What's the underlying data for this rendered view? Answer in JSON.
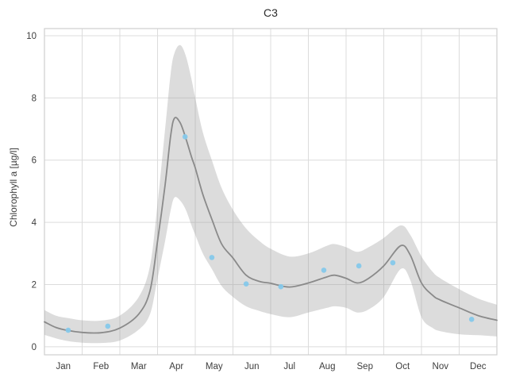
{
  "figure": {
    "background": "#ffffff"
  },
  "colors": {
    "trend_line": "#8a8a8a",
    "confidence_band": "#9b9b9b",
    "confidence_band_alpha": 0.35,
    "scatter_point": "#85c8ea",
    "grid": "#dcdcdc",
    "spine": "#cfcfcf",
    "text": "#3d3d3d",
    "title_text": "#2b2b2b"
  },
  "chart_data": {
    "type": "line",
    "title": "C3",
    "xlabel": "",
    "ylabel": "Chlorophyll a [µg/l]",
    "grid": true,
    "legend": "none",
    "x_axis": {
      "unit": "months (0 = Jan 1, 12 = Dec 31)",
      "range": [
        0,
        12
      ],
      "gridline_positions": [
        0,
        1,
        2,
        3,
        4,
        5,
        6,
        7,
        8,
        9,
        10,
        11,
        12
      ],
      "tick_label_positions": [
        0.5,
        1.5,
        2.5,
        3.5,
        4.5,
        5.5,
        6.5,
        7.5,
        8.5,
        9.5,
        10.5,
        11.5
      ],
      "tick_labels": [
        "Jan",
        "Feb",
        "Mar",
        "Apr",
        "May",
        "Jun",
        "Jul",
        "Aug",
        "Sep",
        "Oct",
        "Nov",
        "Dec"
      ]
    },
    "y_axis": {
      "range": [
        -0.26,
        10.23
      ],
      "ticks": [
        0,
        2,
        4,
        6,
        8,
        10
      ],
      "tick_labels": [
        "0",
        "2",
        "4",
        "6",
        "8",
        "10"
      ]
    },
    "series": [
      {
        "name": "smoothed-mean-line",
        "type": "line",
        "x": [
          0,
          0.3,
          0.63,
          1.0,
          1.5,
          2.0,
          2.5,
          2.8,
          3.0,
          3.2,
          3.35,
          3.45,
          3.6,
          3.75,
          3.9,
          4.0,
          4.2,
          4.44,
          4.7,
          5.0,
          5.35,
          5.7,
          6.0,
          6.5,
          7.0,
          7.5,
          7.7,
          8.0,
          8.3,
          8.6,
          9.0,
          9.45,
          9.7,
          10.0,
          10.3,
          10.5,
          11.0,
          11.5,
          12.0
        ],
        "y": [
          0.8,
          0.62,
          0.52,
          0.46,
          0.45,
          0.6,
          1.05,
          1.8,
          3.4,
          5.2,
          6.8,
          7.35,
          7.2,
          6.7,
          6.1,
          5.75,
          4.9,
          4.1,
          3.3,
          2.85,
          2.3,
          2.1,
          2.04,
          1.92,
          2.05,
          2.25,
          2.3,
          2.2,
          2.05,
          2.2,
          2.6,
          3.25,
          2.95,
          2.05,
          1.65,
          1.5,
          1.25,
          1.0,
          0.85
        ]
      },
      {
        "name": "confidence-band",
        "type": "area",
        "x": [
          0,
          0.3,
          0.63,
          1.0,
          1.5,
          2.0,
          2.5,
          2.8,
          3.0,
          3.2,
          3.35,
          3.45,
          3.6,
          3.75,
          3.9,
          4.0,
          4.2,
          4.44,
          4.7,
          5.0,
          5.35,
          5.7,
          6.0,
          6.5,
          7.0,
          7.5,
          7.7,
          8.0,
          8.3,
          8.6,
          9.0,
          9.45,
          9.7,
          10.0,
          10.3,
          10.5,
          11.0,
          11.5,
          12.0
        ],
        "y_upper": [
          1.18,
          1.0,
          0.92,
          0.85,
          0.84,
          1.0,
          1.6,
          2.6,
          4.6,
          7.0,
          8.8,
          9.45,
          9.7,
          9.35,
          8.6,
          8.0,
          6.9,
          6.0,
          5.1,
          4.4,
          3.8,
          3.4,
          3.15,
          2.9,
          3.0,
          3.25,
          3.3,
          3.2,
          3.05,
          3.2,
          3.5,
          3.9,
          3.6,
          2.9,
          2.4,
          2.2,
          1.85,
          1.55,
          1.35
        ],
        "y_lower": [
          0.38,
          0.27,
          0.18,
          0.13,
          0.12,
          0.2,
          0.55,
          1.05,
          2.2,
          3.4,
          4.4,
          4.8,
          4.7,
          4.4,
          3.9,
          3.6,
          3.0,
          2.5,
          1.95,
          1.6,
          1.3,
          1.15,
          1.05,
          0.95,
          1.1,
          1.25,
          1.3,
          1.25,
          1.1,
          1.2,
          1.6,
          2.5,
          2.15,
          0.95,
          0.6,
          0.5,
          0.4,
          0.37,
          0.33
        ]
      },
      {
        "name": "observations-scatter",
        "type": "scatter",
        "x": [
          0.63,
          1.68,
          3.73,
          4.44,
          5.35,
          6.27,
          7.41,
          8.34,
          9.24,
          11.33
        ],
        "y": [
          0.53,
          0.66,
          6.75,
          2.87,
          2.02,
          1.93,
          2.46,
          2.6,
          2.7,
          0.88
        ]
      }
    ]
  }
}
